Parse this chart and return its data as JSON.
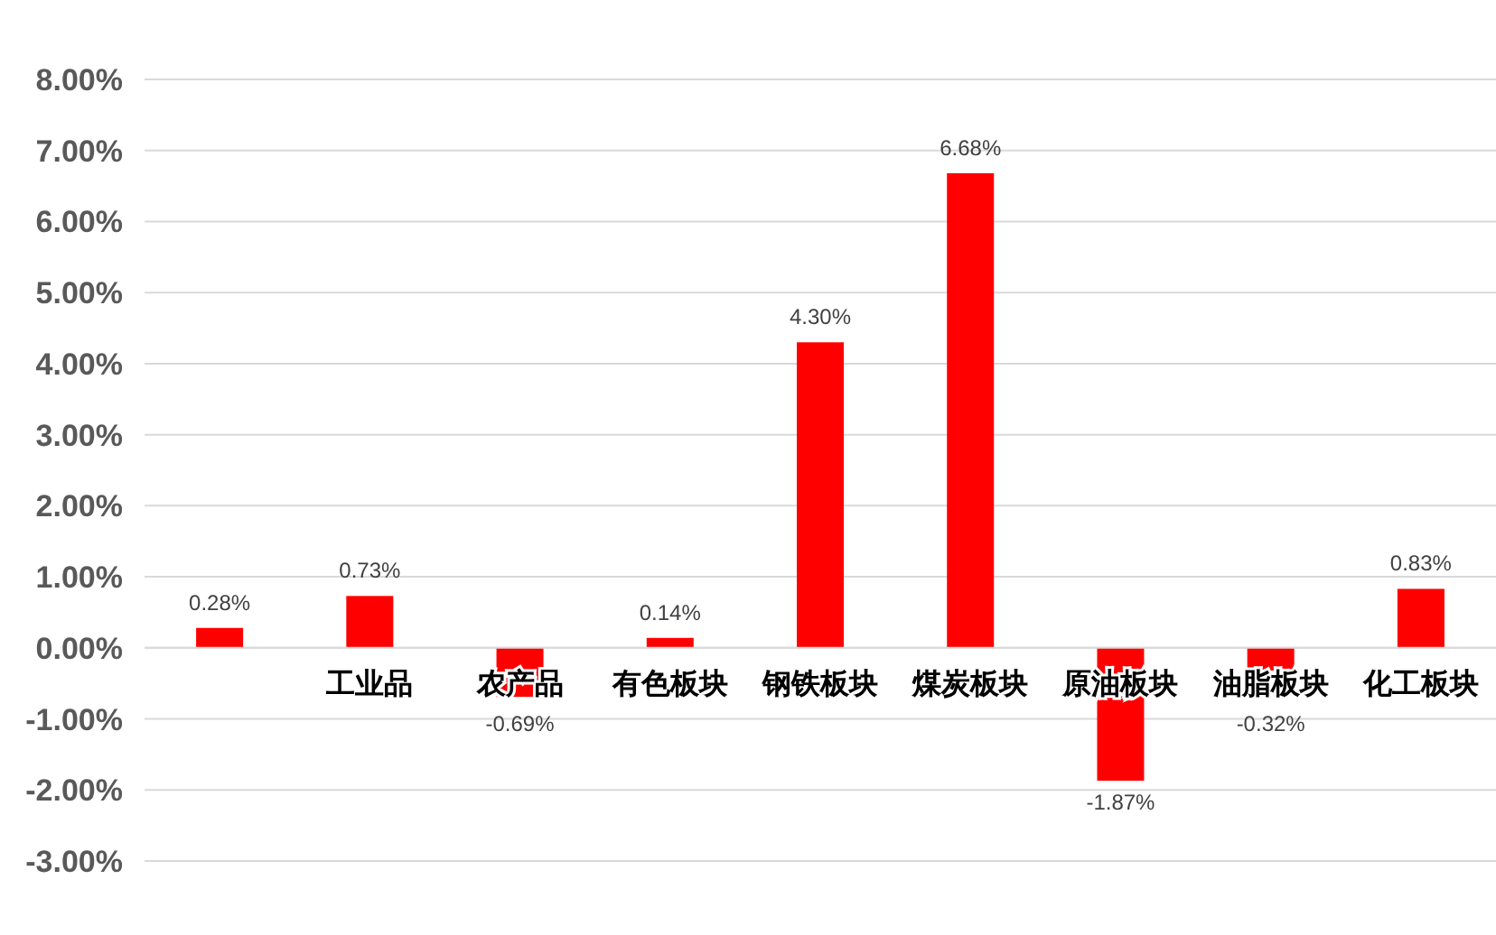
{
  "chart_data": {
    "type": "bar",
    "categories": [
      null,
      "工业品",
      "农产品",
      "有色板块",
      "钢铁板块",
      "煤炭板块",
      "原油板块",
      "油脂板块",
      "化工板块"
    ],
    "values": [
      0.28,
      0.73,
      -0.69,
      0.14,
      4.3,
      6.68,
      -1.87,
      -0.32,
      0.83
    ],
    "color": "#ff0000",
    "value_labels": [
      "0.28%",
      "0.73%",
      "-0.69%",
      "0.14%",
      "4.30%",
      "6.68%",
      "-1.87%",
      "-0.32%",
      "0.83%"
    ],
    "grid": "y",
    "ylim": [
      -3,
      8
    ],
    "yticks": [
      {
        "value": -3,
        "label": "-3.00%"
      },
      {
        "value": -2,
        "label": "-2.00%"
      },
      {
        "value": -1,
        "label": "-1.00%"
      },
      {
        "value": 0,
        "label": "0.00%"
      },
      {
        "value": 1,
        "label": "1.00%"
      },
      {
        "value": 2,
        "label": "2.00%"
      },
      {
        "value": 3,
        "label": "3.00%"
      },
      {
        "value": 4,
        "label": "4.00%"
      },
      {
        "value": 5,
        "label": "5.00%"
      },
      {
        "value": 6,
        "label": "6.00%"
      },
      {
        "value": 7,
        "label": "7.00%"
      },
      {
        "value": 8,
        "label": "8.00%"
      }
    ]
  }
}
